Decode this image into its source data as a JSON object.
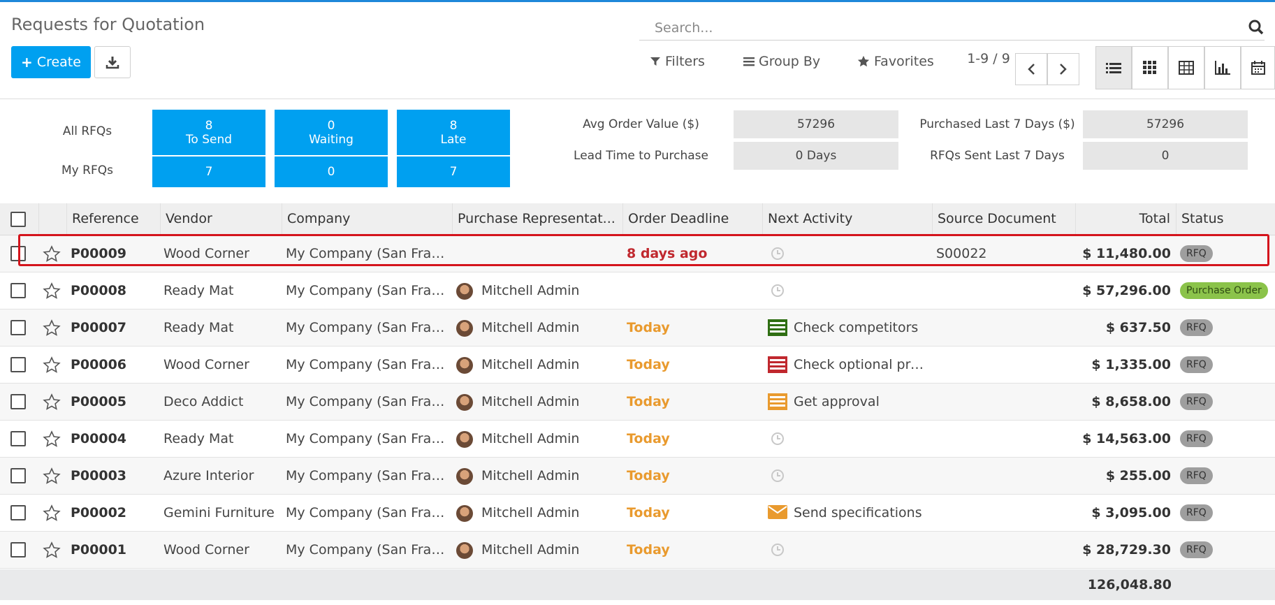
{
  "header": {
    "title": "Requests for Quotation",
    "create_label": "Create",
    "search_placeholder": "Search...",
    "filters_label": "Filters",
    "group_by_label": "Group By",
    "favorites_label": "Favorites",
    "pager_value": "1-9 / 9",
    "views": [
      "list-icon",
      "kanban-icon",
      "pivot-icon",
      "graph-icon",
      "calendar-icon"
    ]
  },
  "dashboard": {
    "all_rfqs_label": "All RFQs",
    "my_rfqs_label": "My RFQs",
    "tiles": [
      {
        "value": "8",
        "label": "To Send",
        "my_value": "7"
      },
      {
        "value": "0",
        "label": "Waiting",
        "my_value": "0"
      },
      {
        "value": "8",
        "label": "Late",
        "my_value": "7"
      }
    ],
    "stats": [
      {
        "label": "Avg Order Value ($)",
        "value": "57296"
      },
      {
        "label": "Lead Time to Purchase",
        "value": "0  Days"
      },
      {
        "label": "Purchased Last 7 Days ($)",
        "value": "57296"
      },
      {
        "label": "RFQs Sent Last 7 Days",
        "value": "0"
      }
    ]
  },
  "table": {
    "columns": [
      "Reference",
      "Vendor",
      "Company",
      "Purchase Representat...",
      "Order Deadline",
      "Next Activity",
      "Source Document",
      "Total",
      "Status"
    ],
    "rows": [
      {
        "reference": "P00009",
        "vendor": "Wood Corner",
        "company": "My Company (San Fran...",
        "rep": "",
        "deadline": "8 days ago",
        "deadline_state": "late",
        "activity": "",
        "activity_icon": "clock-icon",
        "source": "S00022",
        "total": "$ 11,480.00",
        "status": "RFQ"
      },
      {
        "reference": "P00008",
        "vendor": "Ready Mat",
        "company": "My Company (San Fran...",
        "rep": "Mitchell Admin",
        "deadline": "",
        "deadline_state": "none",
        "activity": "",
        "activity_icon": "clock-icon",
        "source": "",
        "total": "$ 57,296.00",
        "status": "Purchase Order"
      },
      {
        "reference": "P00007",
        "vendor": "Ready Mat",
        "company": "My Company (San Fran...",
        "rep": "Mitchell Admin",
        "deadline": "Today",
        "deadline_state": "today",
        "activity": "Check competitors",
        "activity_icon": "todo-green-icon",
        "source": "",
        "total": "$ 637.50",
        "status": "RFQ"
      },
      {
        "reference": "P00006",
        "vendor": "Wood Corner",
        "company": "My Company (San Fran...",
        "rep": "Mitchell Admin",
        "deadline": "Today",
        "deadline_state": "today",
        "activity": "Check optional pro...",
        "activity_icon": "todo-red-icon",
        "source": "",
        "total": "$ 1,335.00",
        "status": "RFQ"
      },
      {
        "reference": "P00005",
        "vendor": "Deco Addict",
        "company": "My Company (San Fran...",
        "rep": "Mitchell Admin",
        "deadline": "Today",
        "deadline_state": "today",
        "activity": "Get approval",
        "activity_icon": "todo-orange-icon",
        "source": "",
        "total": "$ 8,658.00",
        "status": "RFQ"
      },
      {
        "reference": "P00004",
        "vendor": "Ready Mat",
        "company": "My Company (San Fran...",
        "rep": "Mitchell Admin",
        "deadline": "Today",
        "deadline_state": "today",
        "activity": "",
        "activity_icon": "clock-icon",
        "source": "",
        "total": "$ 14,563.00",
        "status": "RFQ"
      },
      {
        "reference": "P00003",
        "vendor": "Azure Interior",
        "company": "My Company (San Fran...",
        "rep": "Mitchell Admin",
        "deadline": "Today",
        "deadline_state": "today",
        "activity": "",
        "activity_icon": "clock-icon",
        "source": "",
        "total": "$ 255.00",
        "status": "RFQ"
      },
      {
        "reference": "P00002",
        "vendor": "Gemini Furniture",
        "company": "My Company (San Fran...",
        "rep": "Mitchell Admin",
        "deadline": "Today",
        "deadline_state": "today",
        "activity": "Send specifications",
        "activity_icon": "envelope-icon",
        "source": "",
        "total": "$ 3,095.00",
        "status": "RFQ"
      },
      {
        "reference": "P00001",
        "vendor": "Wood Corner",
        "company": "My Company (San Fran...",
        "rep": "Mitchell Admin",
        "deadline": "Today",
        "deadline_state": "today",
        "activity": "",
        "activity_icon": "clock-icon",
        "source": "",
        "total": "$ 28,729.30",
        "status": "RFQ"
      }
    ],
    "grand_total": "126,048.80"
  },
  "colors": {
    "primary": "#00a0f0",
    "late": "#c0282e",
    "today": "#e99a2e",
    "highlight": "#d4141c"
  }
}
